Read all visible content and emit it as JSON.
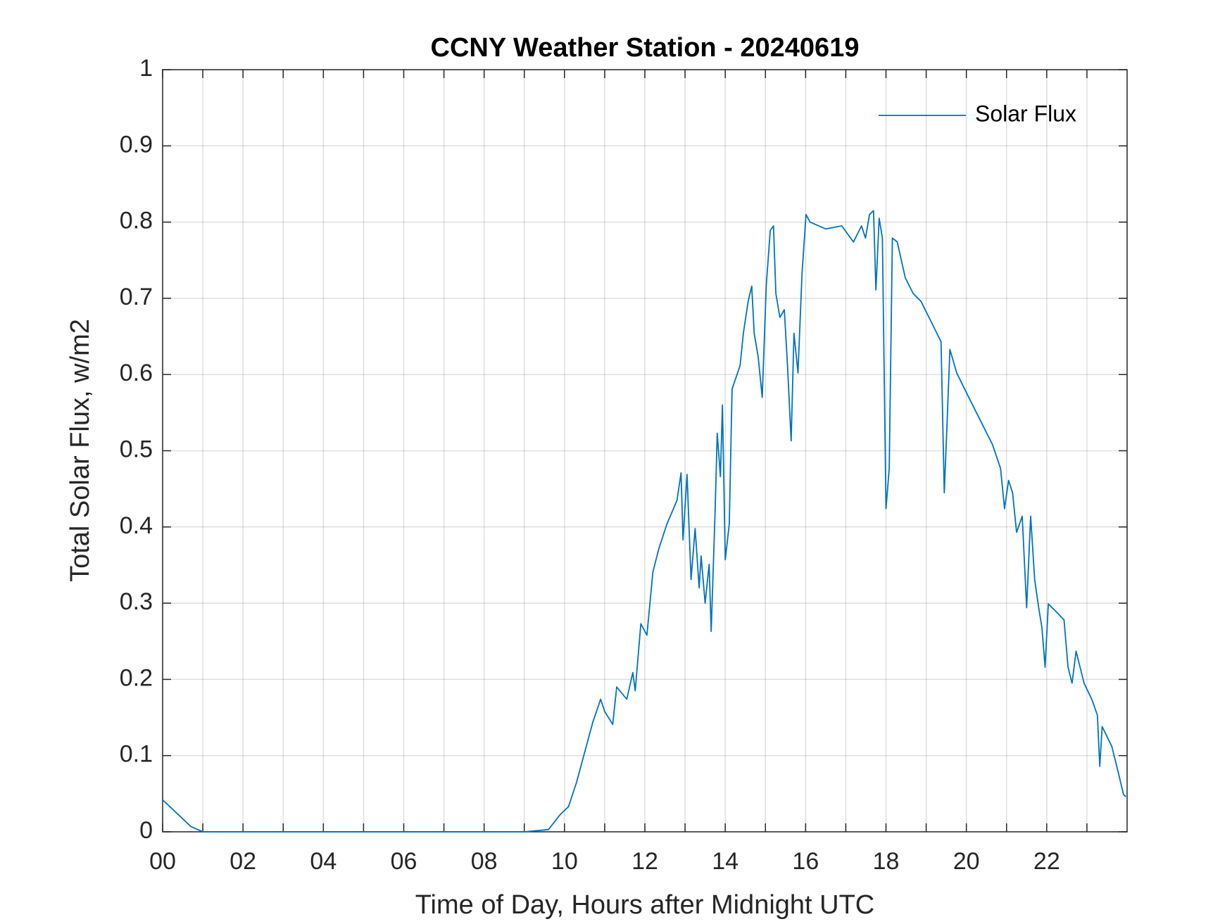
{
  "chart_data": {
    "type": "line",
    "title": "CCNY Weather Station - 20240619",
    "x_label": "Time of Day, Hours after Midnight UTC",
    "y_label": "Total Solar Flux, w/m2",
    "x": [
      0,
      0.7,
      1.0,
      9.0,
      9.6,
      9.9,
      10.1,
      10.3,
      10.7,
      10.9,
      11.0,
      11.2,
      11.3,
      11.55,
      11.7,
      11.76,
      11.9,
      12.05,
      12.2,
      12.35,
      12.55,
      12.8,
      12.9,
      12.95,
      13.05,
      13.15,
      13.25,
      13.35,
      13.4,
      13.5,
      13.6,
      13.65,
      13.75,
      13.8,
      13.88,
      13.93,
      14.0,
      14.1,
      14.17,
      14.37,
      14.45,
      14.57,
      14.66,
      14.72,
      14.82,
      14.92,
      15.02,
      15.12,
      15.2,
      15.26,
      15.36,
      15.47,
      15.55,
      15.64,
      15.71,
      15.81,
      15.91,
      16.01,
      16.11,
      16.5,
      16.9,
      17.19,
      17.39,
      17.49,
      17.59,
      17.69,
      17.75,
      17.83,
      17.91,
      18.0,
      18.08,
      18.16,
      18.28,
      18.48,
      18.68,
      18.87,
      19.07,
      19.37,
      19.45,
      19.51,
      19.59,
      19.76,
      20.06,
      20.45,
      20.65,
      20.85,
      20.95,
      21.05,
      21.15,
      21.25,
      21.39,
      21.5,
      21.6,
      21.7,
      21.8,
      21.88,
      21.96,
      22.04,
      22.23,
      22.43,
      22.53,
      22.63,
      22.73,
      22.93,
      23.12,
      23.26,
      23.32,
      23.38,
      23.62,
      23.77,
      23.91,
      23.97
    ],
    "series": [
      {
        "name": "Solar Flux",
        "color": "#0072bd",
        "values": [
          0.042,
          0.007,
          0,
          0,
          0.003,
          0.023,
          0.033,
          0.065,
          0.143,
          0.174,
          0.158,
          0.141,
          0.19,
          0.174,
          0.209,
          0.185,
          0.273,
          0.258,
          0.341,
          0.372,
          0.404,
          0.435,
          0.471,
          0.383,
          0.469,
          0.331,
          0.398,
          0.32,
          0.362,
          0.3,
          0.351,
          0.263,
          0.424,
          0.523,
          0.466,
          0.56,
          0.357,
          0.404,
          0.581,
          0.612,
          0.654,
          0.696,
          0.716,
          0.654,
          0.623,
          0.57,
          0.716,
          0.789,
          0.795,
          0.706,
          0.675,
          0.685,
          0.612,
          0.513,
          0.654,
          0.602,
          0.732,
          0.81,
          0.8,
          0.791,
          0.795,
          0.774,
          0.795,
          0.779,
          0.81,
          0.815,
          0.711,
          0.805,
          0.779,
          0.424,
          0.477,
          0.779,
          0.774,
          0.727,
          0.706,
          0.696,
          0.675,
          0.643,
          0.445,
          0.523,
          0.633,
          0.602,
          0.57,
          0.529,
          0.508,
          0.477,
          0.424,
          0.461,
          0.445,
          0.393,
          0.414,
          0.294,
          0.414,
          0.331,
          0.294,
          0.268,
          0.216,
          0.299,
          0.289,
          0.278,
          0.216,
          0.195,
          0.237,
          0.195,
          0.174,
          0.153,
          0.086,
          0.138,
          0.112,
          0.08,
          0.049,
          0.046
        ]
      }
    ],
    "xlim": [
      0,
      24
    ],
    "xticks": [
      {
        "value": 0,
        "label": "00"
      },
      {
        "value": 2,
        "label": "02"
      },
      {
        "value": 4,
        "label": "04"
      },
      {
        "value": 6,
        "label": "06"
      },
      {
        "value": 8,
        "label": "08"
      },
      10,
      12,
      14,
      16,
      18,
      20,
      22
    ],
    "xminorticks": [
      1,
      3,
      5,
      7,
      9,
      11,
      13,
      15,
      17,
      19,
      21,
      23
    ],
    "ylim": [
      0,
      1
    ],
    "yticks": [
      0,
      0.1,
      0.2,
      0.3,
      0.4,
      0.5,
      0.6,
      0.7,
      0.8,
      0.9,
      1
    ],
    "grid": true,
    "legend": "upper right"
  }
}
